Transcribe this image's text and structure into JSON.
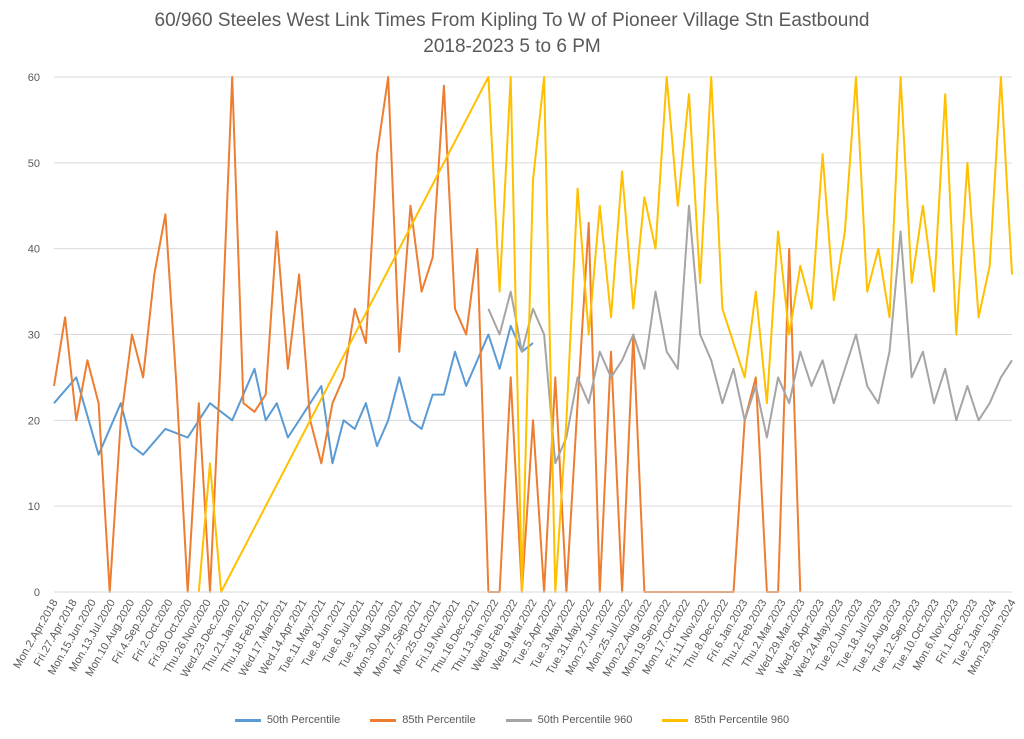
{
  "chart_data": {
    "type": "line",
    "title": "60/960 Steeles West Link Times From Kipling To W of Pioneer Village Stn Eastbound",
    "subtitle": "2018-2023 5 to 6 PM",
    "xlabel": "",
    "ylabel": "",
    "ylim": [
      0,
      60
    ],
    "yticks": [
      0,
      10,
      20,
      30,
      40,
      50,
      60
    ],
    "grid": true,
    "legend_position": "bottom",
    "x_tick_labels": [
      "Mon.2.Apr.2018",
      "Fri.27.Apr.2018",
      "Mon.15.Jun.2020",
      "Mon.13.Jul.2020",
      "Mon.10.Aug.2020",
      "Fri.4.Sep.2020",
      "Fri.2.Oct.2020",
      "Fri.30.Oct.2020",
      "Thu.26.Nov.2020",
      "Wed.23.Dec.2020",
      "Thu.21.Jan.2021",
      "Thu.18.Feb.2021",
      "Wed.17.Mar.2021",
      "Wed.14.Apr.2021",
      "Tue.11.May.2021",
      "Tue.8.Jun.2021",
      "Tue.6.Jul.2021",
      "Tue.3.Aug.2021",
      "Mon.30.Aug.2021",
      "Mon.27.Sep.2021",
      "Mon.25.Oct.2021",
      "Fri.19.Nov.2021",
      "Thu.16.Dec.2021",
      "Thu.13.Jan.2022",
      "Wed.9.Feb.2022",
      "Wed.9.Mar.2022",
      "Tue.5.Apr.2022",
      "Tue.3.May.2022",
      "Tue.31.May.2022",
      "Mon.27.Jun.2022",
      "Mon.25.Jul.2022",
      "Mon.22.Aug.2022",
      "Mon.19.Sep.2022",
      "Mon.17.Oct.2022",
      "Fri.11.Nov.2022",
      "Thu.8.Dec.2022",
      "Fri.6.Jan.2023",
      "Thu.2.Feb.2023",
      "Thu.2.Mar.2023",
      "Wed.29.Mar.2023",
      "Wed.26.Apr.2023",
      "Wed.24.May.2023",
      "Tue.20.Jun.2023",
      "Tue.18.Jul.2023",
      "Tue.15.Aug.2023",
      "Tue.12.Sep.2023",
      "Tue.10.Oct.2023",
      "Mon.6.Nov.2023",
      "Fri.1.Dec.2023",
      "Tue.2.Jan.2024",
      "Mon.29.Jan.2024"
    ],
    "series": [
      {
        "name": "50th Percentile",
        "color": "#5B9BD5",
        "points": [
          [
            0,
            22
          ],
          [
            2,
            25
          ],
          [
            4,
            16
          ],
          [
            6,
            22
          ],
          [
            7,
            17
          ],
          [
            8,
            16
          ],
          [
            10,
            19
          ],
          [
            12,
            18
          ],
          [
            14,
            22
          ],
          [
            15,
            21
          ],
          [
            16,
            20
          ],
          [
            18,
            26
          ],
          [
            19,
            20
          ],
          [
            20,
            22
          ],
          [
            21,
            18
          ],
          [
            22,
            20
          ],
          [
            24,
            24
          ],
          [
            25,
            15
          ],
          [
            26,
            20
          ],
          [
            27,
            19
          ],
          [
            28,
            22
          ],
          [
            29,
            17
          ],
          [
            30,
            20
          ],
          [
            31,
            25
          ],
          [
            32,
            20
          ],
          [
            33,
            19
          ],
          [
            34,
            23
          ],
          [
            35,
            23
          ],
          [
            36,
            28
          ],
          [
            37,
            24
          ],
          [
            38,
            27
          ],
          [
            39,
            30
          ],
          [
            40,
            26
          ],
          [
            41,
            31
          ],
          [
            42,
            28
          ],
          [
            43,
            29
          ]
        ]
      },
      {
        "name": "85th Percentile",
        "color": "#ED7D31",
        "points": [
          [
            0,
            24
          ],
          [
            1,
            32
          ],
          [
            2,
            20
          ],
          [
            3,
            27
          ],
          [
            4,
            22
          ],
          [
            5,
            0
          ],
          [
            6,
            20
          ],
          [
            7,
            30
          ],
          [
            8,
            25
          ],
          [
            9,
            37
          ],
          [
            10,
            44
          ],
          [
            11,
            24
          ],
          [
            12,
            0
          ],
          [
            13,
            22
          ],
          [
            14,
            0
          ],
          [
            15,
            28
          ],
          [
            16,
            60
          ],
          [
            17,
            22
          ],
          [
            18,
            21
          ],
          [
            19,
            23
          ],
          [
            20,
            42
          ],
          [
            21,
            26
          ],
          [
            22,
            37
          ],
          [
            23,
            20
          ],
          [
            24,
            15
          ],
          [
            25,
            22
          ],
          [
            26,
            25
          ],
          [
            27,
            33
          ],
          [
            28,
            29
          ],
          [
            29,
            51
          ],
          [
            30,
            60
          ],
          [
            31,
            28
          ],
          [
            32,
            45
          ],
          [
            33,
            35
          ],
          [
            34,
            39
          ],
          [
            35,
            59
          ],
          [
            36,
            33
          ],
          [
            37,
            30
          ],
          [
            38,
            40
          ],
          [
            39,
            0
          ],
          [
            40,
            0
          ],
          [
            41,
            25
          ],
          [
            42,
            0
          ],
          [
            43,
            20
          ],
          [
            44,
            0
          ],
          [
            45,
            25
          ],
          [
            46,
            0
          ],
          [
            47,
            22
          ],
          [
            48,
            43
          ],
          [
            49,
            0
          ],
          [
            50,
            28
          ],
          [
            51,
            0
          ],
          [
            52,
            30
          ],
          [
            53,
            0
          ],
          [
            54,
            0
          ],
          [
            55,
            0
          ],
          [
            56,
            0
          ],
          [
            57,
            0
          ],
          [
            58,
            0
          ],
          [
            59,
            0
          ],
          [
            60,
            0
          ],
          [
            61,
            0
          ],
          [
            62,
            20
          ],
          [
            63,
            25
          ],
          [
            64,
            0
          ],
          [
            65,
            0
          ],
          [
            66,
            40
          ],
          [
            67,
            0
          ]
        ]
      },
      {
        "name": "50th Percentile 960",
        "color": "#A5A5A5",
        "points": [
          [
            39,
            33
          ],
          [
            40,
            30
          ],
          [
            41,
            35
          ],
          [
            42,
            28
          ],
          [
            43,
            33
          ],
          [
            44,
            30
          ],
          [
            45,
            15
          ],
          [
            46,
            18
          ],
          [
            47,
            25
          ],
          [
            48,
            22
          ],
          [
            49,
            28
          ],
          [
            50,
            25
          ],
          [
            51,
            27
          ],
          [
            52,
            30
          ],
          [
            53,
            26
          ],
          [
            54,
            35
          ],
          [
            55,
            28
          ],
          [
            56,
            26
          ],
          [
            57,
            45
          ],
          [
            58,
            30
          ],
          [
            59,
            27
          ],
          [
            60,
            22
          ],
          [
            61,
            26
          ],
          [
            62,
            20
          ],
          [
            63,
            24
          ],
          [
            64,
            18
          ],
          [
            65,
            25
          ],
          [
            66,
            22
          ],
          [
            67,
            28
          ],
          [
            68,
            24
          ],
          [
            69,
            27
          ],
          [
            70,
            22
          ],
          [
            71,
            26
          ],
          [
            72,
            30
          ],
          [
            73,
            24
          ],
          [
            74,
            22
          ],
          [
            75,
            28
          ],
          [
            76,
            42
          ],
          [
            77,
            25
          ],
          [
            78,
            28
          ],
          [
            79,
            22
          ],
          [
            80,
            26
          ],
          [
            81,
            20
          ],
          [
            82,
            24
          ],
          [
            83,
            20
          ],
          [
            84,
            22
          ],
          [
            85,
            25
          ],
          [
            86,
            27
          ]
        ]
      },
      {
        "name": "85th Percentile 960",
        "color": "#FFC000",
        "points": [
          [
            13,
            0
          ],
          [
            14,
            15
          ],
          [
            15,
            0
          ],
          [
            39,
            60
          ],
          [
            40,
            35
          ],
          [
            41,
            60
          ],
          [
            42,
            0
          ],
          [
            43,
            48
          ],
          [
            44,
            60
          ],
          [
            45,
            0
          ],
          [
            46,
            20
          ],
          [
            47,
            47
          ],
          [
            48,
            30
          ],
          [
            49,
            45
          ],
          [
            50,
            32
          ],
          [
            51,
            49
          ],
          [
            52,
            33
          ],
          [
            53,
            46
          ],
          [
            54,
            40
          ],
          [
            55,
            60
          ],
          [
            56,
            45
          ],
          [
            57,
            58
          ],
          [
            58,
            36
          ],
          [
            59,
            60
          ],
          [
            60,
            33
          ],
          [
            61,
            29
          ],
          [
            62,
            25
          ],
          [
            63,
            35
          ],
          [
            64,
            22
          ],
          [
            65,
            42
          ],
          [
            66,
            30
          ],
          [
            67,
            38
          ],
          [
            68,
            33
          ],
          [
            69,
            51
          ],
          [
            70,
            34
          ],
          [
            71,
            42
          ],
          [
            72,
            60
          ],
          [
            73,
            35
          ],
          [
            74,
            40
          ],
          [
            75,
            32
          ],
          [
            76,
            60
          ],
          [
            77,
            36
          ],
          [
            78,
            45
          ],
          [
            79,
            35
          ],
          [
            80,
            58
          ],
          [
            81,
            30
          ],
          [
            82,
            50
          ],
          [
            83,
            32
          ],
          [
            84,
            38
          ],
          [
            85,
            60
          ],
          [
            86,
            37
          ]
        ]
      }
    ]
  }
}
